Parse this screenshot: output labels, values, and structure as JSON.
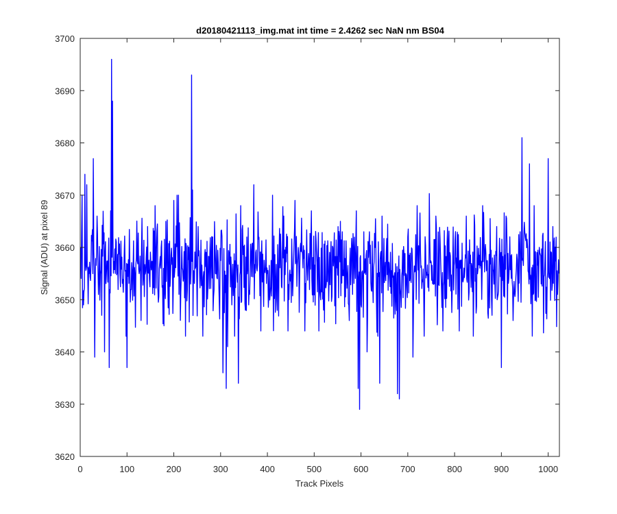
{
  "chart_data": {
    "type": "line",
    "title": "d20180421113_img.mat int time = 2.4262 sec  NaN nm BS04",
    "xlabel": "Track Pixels",
    "ylabel": "Signal (ADU) at pixel 89",
    "xlim": [
      0,
      1024
    ],
    "ylim": [
      3620,
      3700
    ],
    "x_ticks": [
      0,
      100,
      200,
      300,
      400,
      500,
      600,
      700,
      800,
      900,
      1000
    ],
    "y_ticks": [
      3620,
      3630,
      3640,
      3650,
      3660,
      3670,
      3680,
      3690,
      3700
    ],
    "grid": false,
    "legend": "none",
    "series": [
      {
        "color": "#0000ff",
        "x_start": 1,
        "x_step": 1,
        "count": 1024,
        "mean": 3656,
        "anchors": [
          [
            1,
            3660
          ],
          [
            4,
            3670
          ],
          [
            7,
            3649
          ],
          [
            10,
            3674
          ],
          [
            14,
            3672
          ],
          [
            19,
            3655
          ],
          [
            28,
            3677
          ],
          [
            31,
            3639
          ],
          [
            36,
            3666
          ],
          [
            46,
            3647
          ],
          [
            52,
            3640
          ],
          [
            62,
            3637
          ],
          [
            65,
            3667
          ],
          [
            67,
            3696
          ],
          [
            69,
            3688
          ],
          [
            75,
            3655
          ],
          [
            98,
            3643
          ],
          [
            100,
            3637
          ],
          [
            120,
            3658
          ],
          [
            130,
            3646
          ],
          [
            144,
            3664
          ],
          [
            160,
            3668
          ],
          [
            179,
            3645
          ],
          [
            200,
            3669
          ],
          [
            207,
            3670
          ],
          [
            210,
            3670
          ],
          [
            225,
            3643
          ],
          [
            236,
            3653
          ],
          [
            238,
            3693
          ],
          [
            240,
            3671
          ],
          [
            252,
            3664
          ],
          [
            262,
            3643
          ],
          [
            283,
            3662
          ],
          [
            293,
            3654
          ],
          [
            305,
            3636
          ],
          [
            312,
            3633
          ],
          [
            315,
            3641
          ],
          [
            330,
            3643
          ],
          [
            338,
            3634
          ],
          [
            343,
            3668
          ],
          [
            360,
            3649
          ],
          [
            371,
            3672
          ],
          [
            386,
            3644
          ],
          [
            400,
            3655
          ],
          [
            411,
            3670
          ],
          [
            420,
            3650
          ],
          [
            435,
            3666
          ],
          [
            444,
            3644
          ],
          [
            459,
            3669
          ],
          [
            466,
            3660
          ],
          [
            480,
            3644
          ],
          [
            494,
            3667
          ],
          [
            510,
            3644
          ],
          [
            520,
            3648
          ],
          [
            540,
            3660
          ],
          [
            560,
            3663
          ],
          [
            575,
            3646
          ],
          [
            581,
            3660
          ],
          [
            590,
            3667
          ],
          [
            594,
            3633
          ],
          [
            597,
            3629
          ],
          [
            600,
            3649
          ],
          [
            606,
            3663
          ],
          [
            613,
            3640
          ],
          [
            630,
            3660
          ],
          [
            636,
            3643
          ],
          [
            640,
            3634
          ],
          [
            645,
            3666
          ],
          [
            660,
            3657
          ],
          [
            678,
            3632
          ],
          [
            682,
            3631
          ],
          [
            700,
            3662
          ],
          [
            711,
            3639
          ],
          [
            720,
            3668
          ],
          [
            735,
            3643
          ],
          [
            760,
            3666
          ],
          [
            775,
            3644
          ],
          [
            790,
            3659
          ],
          [
            810,
            3644
          ],
          [
            825,
            3666
          ],
          [
            840,
            3643
          ],
          [
            860,
            3668
          ],
          [
            880,
            3647
          ],
          [
            890,
            3664
          ],
          [
            900,
            3637
          ],
          [
            910,
            3666
          ],
          [
            925,
            3646
          ],
          [
            940,
            3663
          ],
          [
            944,
            3681
          ],
          [
            950,
            3663
          ],
          [
            960,
            3676
          ],
          [
            970,
            3668
          ],
          [
            985,
            3653
          ],
          [
            1000,
            3677
          ],
          [
            1010,
            3664
          ],
          [
            1020,
            3651
          ],
          [
            1024,
            3655
          ]
        ]
      }
    ]
  }
}
